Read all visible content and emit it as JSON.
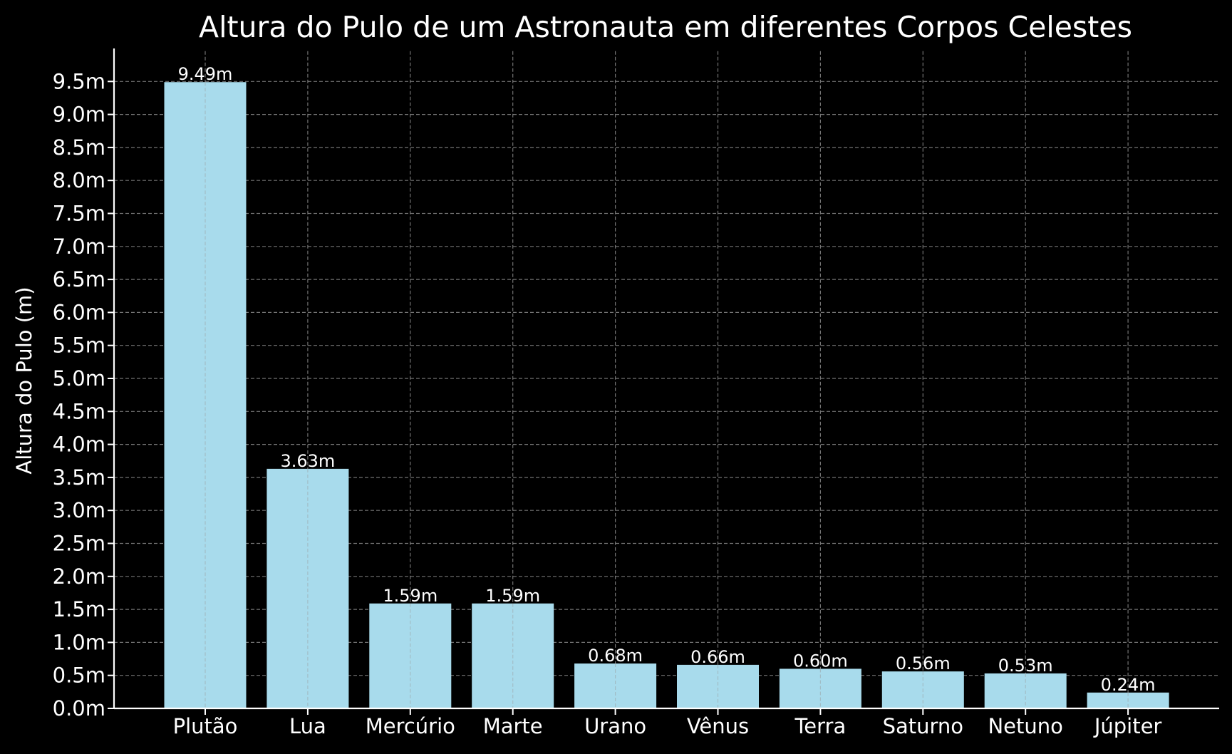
{
  "chart_data": {
    "type": "bar",
    "title": "Altura do Pulo de um Astronauta em diferentes Corpos Celestes",
    "xlabel": "",
    "ylabel": "Altura do Pulo (m)",
    "categories": [
      "Plutão",
      "Lua",
      "Mercúrio",
      "Marte",
      "Urano",
      "Vênus",
      "Terra",
      "Saturno",
      "Netuno",
      "Júpiter"
    ],
    "values": [
      9.49,
      3.63,
      1.59,
      1.59,
      0.68,
      0.66,
      0.6,
      0.56,
      0.53,
      0.24
    ],
    "value_labels": [
      "9.49m",
      "3.63m",
      "1.59m",
      "1.59m",
      "0.68m",
      "0.66m",
      "0.60m",
      "0.56m",
      "0.53m",
      "0.24m"
    ],
    "yticks": [
      0,
      0.5,
      1.0,
      1.5,
      2.0,
      2.5,
      3.0,
      3.5,
      4.0,
      4.5,
      5.0,
      5.5,
      6.0,
      6.5,
      7.0,
      7.5,
      8.0,
      8.5,
      9.0,
      9.5
    ],
    "ytick_labels": [
      "0.0m",
      "0.5m",
      "1.0m",
      "1.5m",
      "2.0m",
      "2.5m",
      "3.0m",
      "3.5m",
      "4.0m",
      "4.5m",
      "5.0m",
      "5.5m",
      "6.0m",
      "6.5m",
      "7.0m",
      "7.5m",
      "8.0m",
      "8.5m",
      "9.0m",
      "9.5m"
    ],
    "ylim": [
      0,
      9.96
    ],
    "grid": true,
    "colors": {
      "background": "#000000",
      "bar": "#a8dbec",
      "text": "#ffffff",
      "grid": "#9a9a9a"
    }
  }
}
